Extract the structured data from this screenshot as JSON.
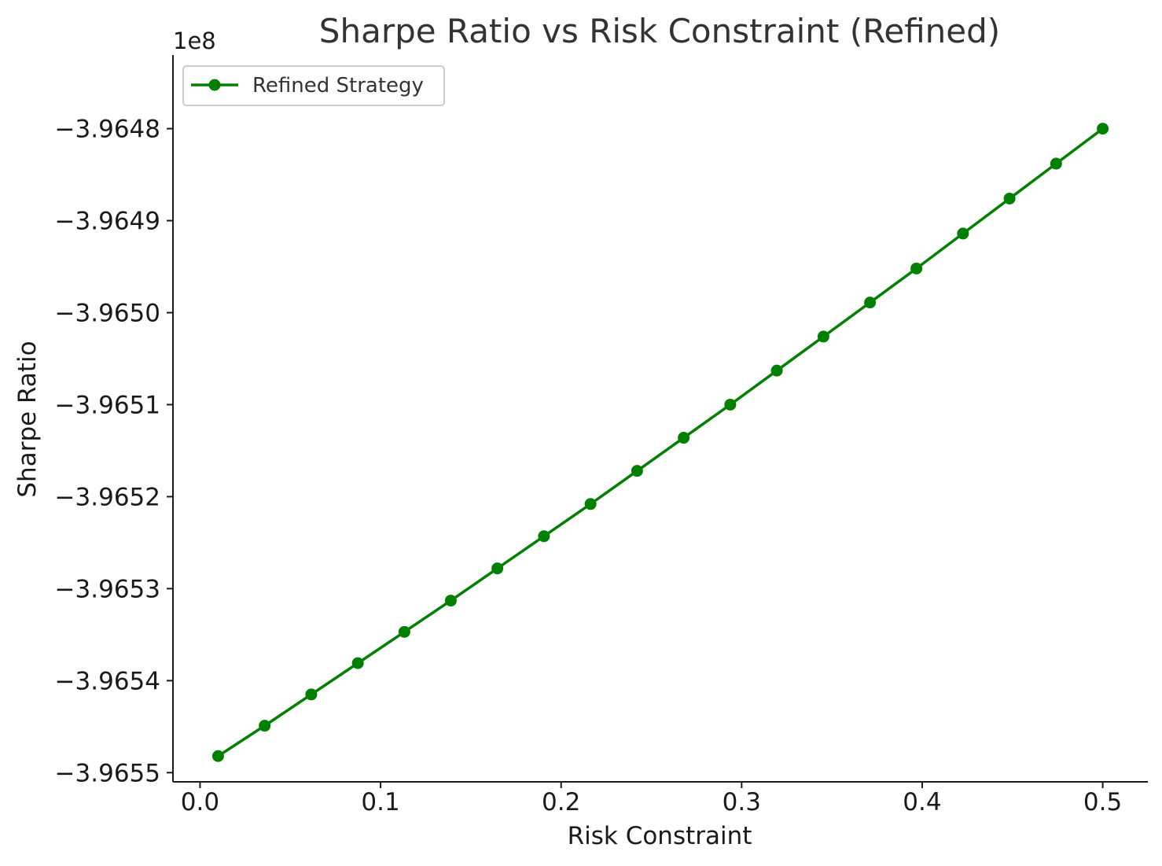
{
  "chart_data": {
    "type": "line",
    "title": "Sharpe Ratio vs Risk Constraint (Refined)",
    "xlabel": "Risk Constraint",
    "ylabel": "Sharpe Ratio",
    "y_offset_label": "1e8",
    "xlim": [
      -0.015,
      0.525
    ],
    "ylim": [
      -3.96551,
      -3.96472
    ],
    "x_ticks": [
      0.0,
      0.1,
      0.2,
      0.3,
      0.4,
      0.5
    ],
    "x_tick_labels": [
      "0.0",
      "0.1",
      "0.2",
      "0.3",
      "0.4",
      "0.5"
    ],
    "y_ticks": [
      -3.9648,
      -3.9649,
      -3.965,
      -3.9651,
      -3.9652,
      -3.9653,
      -3.9654,
      -3.9655
    ],
    "y_tick_labels": [
      "−3.9648",
      "−3.9649",
      "−3.9650",
      "−3.9651",
      "−3.9652",
      "−3.9653",
      "−3.9654",
      "−3.9655"
    ],
    "grid": false,
    "legend_position": "top-left",
    "series": [
      {
        "name": "Refined Strategy",
        "color": "#008000",
        "marker": "circle",
        "x": [
          0.01,
          0.0358,
          0.0616,
          0.0874,
          0.1132,
          0.1389,
          0.1647,
          0.1905,
          0.2163,
          0.2421,
          0.2679,
          0.2937,
          0.3195,
          0.3453,
          0.3711,
          0.3968,
          0.4226,
          0.4484,
          0.4742,
          0.5
        ],
        "y": [
          -3.965482,
          -3.965449,
          -3.965415,
          -3.965381,
          -3.965347,
          -3.965313,
          -3.965278,
          -3.965243,
          -3.965208,
          -3.965172,
          -3.965136,
          -3.9651,
          -3.965063,
          -3.965026,
          -3.964989,
          -3.964952,
          -3.964914,
          -3.964876,
          -3.964838,
          -3.9648
        ]
      }
    ]
  }
}
